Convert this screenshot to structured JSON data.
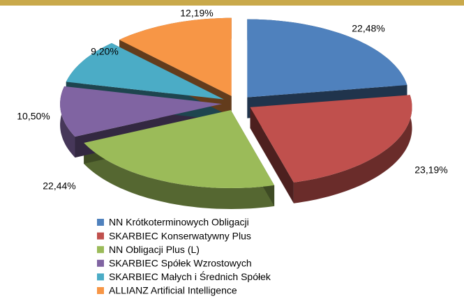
{
  "chart_data": {
    "type": "pie",
    "categories": [
      "NN Krótkoterminowych Obligacji",
      "SKARBIEC Konserwatywny Plus",
      "NN Obligacji Plus (L)",
      "SKARBIEC Spółek Wzrostowych",
      "SKARBIEC Małych i Średnich Spółek",
      "ALLIANZ Artificial Intelligence"
    ],
    "values": [
      22.48,
      23.19,
      22.44,
      10.5,
      9.2,
      12.19
    ],
    "value_labels": [
      "22,48%",
      "23,19%",
      "22,44%",
      "10,50%",
      "9,20%",
      "12,19%"
    ],
    "colors": [
      "#4f81bd",
      "#c0504d",
      "#9bbb59",
      "#8064a2",
      "#4bacc6",
      "#f79646"
    ],
    "legend": "bottom"
  }
}
